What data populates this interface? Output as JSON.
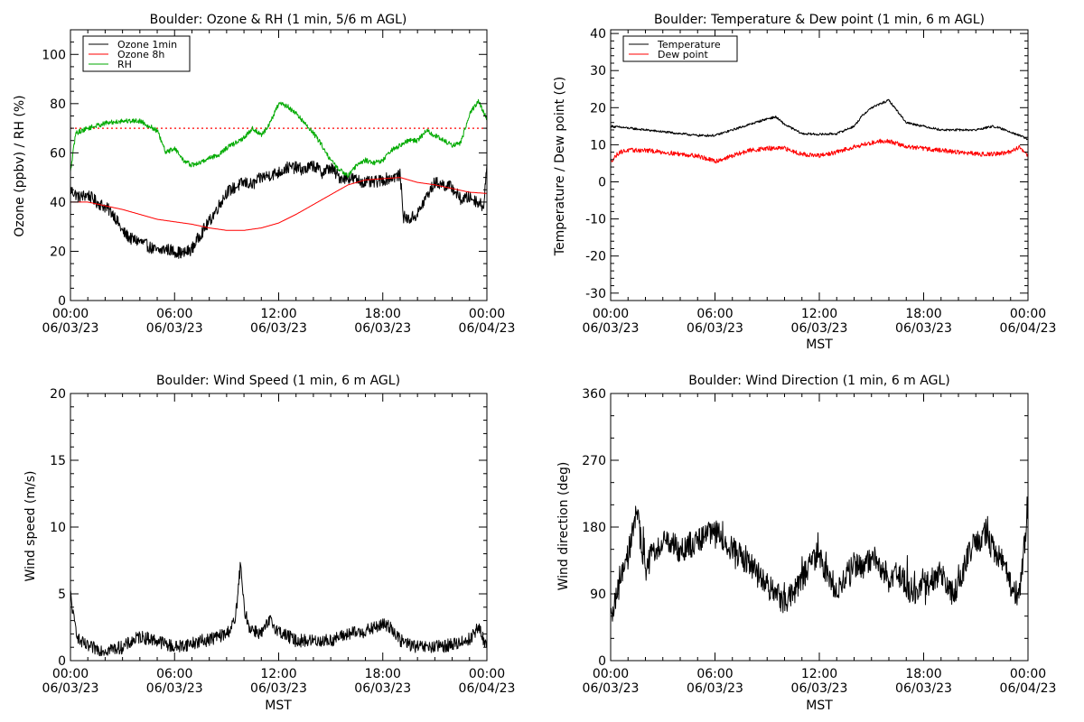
{
  "chart_data": [
    {
      "id": "ozone_rh",
      "type": "line",
      "title": "Boulder: Ozone & RH (1 min, 5/6 m AGL)",
      "ylabel": "Ozone (ppbv) / RH (%)",
      "xlabel": "",
      "xlim": [
        0,
        24
      ],
      "ylim": [
        0,
        110
      ],
      "xticks": [
        {
          "v": 0,
          "l1": "00:00",
          "l2": "06/03/23"
        },
        {
          "v": 6,
          "l1": "06:00",
          "l2": "06/03/23"
        },
        {
          "v": 12,
          "l1": "12:00",
          "l2": "06/03/23"
        },
        {
          "v": 18,
          "l1": "18:00",
          "l2": "06/03/23"
        },
        {
          "v": 24,
          "l1": "00:00",
          "l2": "06/04/23"
        }
      ],
      "yticks": [
        0,
        20,
        40,
        60,
        80,
        100
      ],
      "yminor": 5,
      "reference_line": {
        "y": 70,
        "color": "#ff0000",
        "style": "dotted"
      },
      "legend": {
        "position": "top-left"
      },
      "series": [
        {
          "name": "Ozone 1min",
          "color": "#000000",
          "noise": 2.5,
          "x": [
            0,
            0.5,
            1,
            1.5,
            2,
            2.5,
            3,
            3.5,
            4,
            4.5,
            5,
            5.5,
            6,
            6.5,
            7,
            7.5,
            8,
            8.5,
            9,
            9.5,
            10,
            10.5,
            11,
            11.5,
            12,
            12.5,
            13,
            13.5,
            14,
            14.5,
            15,
            15.5,
            16,
            16.5,
            17,
            17.5,
            18,
            18.5,
            19,
            19.2,
            19.5,
            20,
            20.5,
            21,
            21.5,
            22,
            22.5,
            23,
            23.5,
            23.8,
            24
          ],
          "y": [
            45,
            42,
            43,
            40,
            38,
            35,
            28,
            25,
            24,
            22,
            20,
            21,
            20,
            19,
            21,
            27,
            32,
            38,
            44,
            46,
            48,
            47,
            50,
            51,
            52,
            54,
            54,
            53,
            55,
            52,
            54,
            50,
            50,
            49,
            48,
            48,
            49,
            50,
            51,
            34,
            33,
            35,
            42,
            48,
            47,
            46,
            41,
            42,
            40,
            38,
            55
          ]
        },
        {
          "name": "Ozone 8h",
          "color": "#ff0000",
          "noise": 0,
          "x": [
            0,
            1,
            2,
            3,
            4,
            5,
            6,
            7,
            8,
            9,
            10,
            11,
            12,
            13,
            14,
            15,
            16,
            17,
            18,
            19,
            20,
            21,
            22,
            23,
            24
          ],
          "y": [
            40,
            40,
            38.5,
            37,
            35,
            33,
            32,
            31,
            29.5,
            28.5,
            28.5,
            29.5,
            31.5,
            35,
            39,
            43,
            47,
            49,
            49.5,
            50,
            48,
            47,
            45.5,
            44,
            43.5
          ]
        },
        {
          "name": "RH",
          "color": "#00aa00",
          "noise": 1,
          "x": [
            0,
            0.3,
            1,
            2,
            3,
            4,
            4.5,
            5,
            5.5,
            6,
            6.5,
            7,
            7.5,
            8,
            8.5,
            9,
            9.5,
            10,
            10.5,
            11,
            11.5,
            12,
            12.5,
            13,
            13.5,
            14,
            14.5,
            15,
            15.5,
            16,
            16.5,
            17,
            17.5,
            18,
            18.5,
            19,
            19.5,
            20,
            20.5,
            21,
            21.5,
            22,
            22.5,
            23,
            23.5,
            24
          ],
          "y": [
            52,
            68,
            70,
            72,
            73,
            73,
            71,
            69,
            60,
            62,
            57,
            55,
            56,
            58,
            59,
            62,
            64,
            66,
            70,
            67,
            72,
            80,
            79,
            76,
            72,
            68,
            63,
            57,
            53,
            51,
            55,
            57,
            56,
            57,
            61,
            63,
            65,
            65,
            69,
            67,
            65,
            63,
            64,
            76,
            81,
            74
          ]
        }
      ]
    },
    {
      "id": "temp_dew",
      "type": "line",
      "title": "Boulder: Temperature & Dew point (1 min, 6 m AGL)",
      "ylabel": "Temperature / Dew point (C)",
      "xlabel": "MST",
      "xlim": [
        0,
        24
      ],
      "ylim": [
        -32,
        41
      ],
      "xticks": [
        {
          "v": 0,
          "l1": "00:00",
          "l2": "06/03/23"
        },
        {
          "v": 6,
          "l1": "06:00",
          "l2": "06/03/23"
        },
        {
          "v": 12,
          "l1": "12:00",
          "l2": "06/03/23"
        },
        {
          "v": 18,
          "l1": "18:00",
          "l2": "06/03/23"
        },
        {
          "v": 24,
          "l1": "00:00",
          "l2": "06/04/23"
        }
      ],
      "yticks": [
        -30,
        -20,
        -10,
        0,
        10,
        20,
        30,
        40
      ],
      "yminor": 2,
      "legend": {
        "position": "top-left"
      },
      "series": [
        {
          "name": "Temperature",
          "color": "#000000",
          "noise": 0.3,
          "x": [
            0,
            1,
            2,
            3,
            4,
            5,
            6,
            7,
            8,
            9,
            9.5,
            10,
            11,
            12,
            13,
            14,
            14.5,
            15,
            15.5,
            16,
            16.5,
            17,
            18,
            19,
            20,
            21,
            22,
            23,
            24
          ],
          "y": [
            15,
            14.5,
            14,
            13.5,
            13,
            12.5,
            12.5,
            14,
            15.5,
            17,
            17.5,
            15.5,
            13,
            12.8,
            13,
            15,
            18,
            20,
            21,
            22,
            19,
            16,
            15,
            14,
            14,
            14,
            15,
            13.5,
            11.5
          ]
        },
        {
          "name": "Dew point",
          "color": "#ff0000",
          "noise": 0.6,
          "x": [
            0,
            0.5,
            1,
            2,
            3,
            4,
            5,
            6,
            7,
            8,
            9,
            10,
            11,
            12,
            13,
            14,
            15,
            15.5,
            16,
            17,
            18,
            19,
            20,
            21,
            22,
            23,
            23.5,
            24
          ],
          "y": [
            5.5,
            8,
            8.5,
            8.5,
            8,
            7.5,
            7,
            5.5,
            7,
            8.5,
            9,
            9,
            7.5,
            7,
            8,
            9.5,
            10.5,
            11,
            11,
            9.5,
            9,
            8.5,
            8,
            7.5,
            7.5,
            8,
            9.5,
            7
          ]
        }
      ]
    },
    {
      "id": "wind_speed",
      "type": "line",
      "title": "Boulder: Wind Speed (1 min, 6 m AGL)",
      "ylabel": "Wind speed (m/s)",
      "xlabel": "MST",
      "xlim": [
        0,
        24
      ],
      "ylim": [
        0,
        20
      ],
      "xticks": [
        {
          "v": 0,
          "l1": "00:00",
          "l2": "06/03/23"
        },
        {
          "v": 6,
          "l1": "06:00",
          "l2": "06/03/23"
        },
        {
          "v": 12,
          "l1": "12:00",
          "l2": "06/03/23"
        },
        {
          "v": 18,
          "l1": "18:00",
          "l2": "06/03/23"
        },
        {
          "v": 24,
          "l1": "00:00",
          "l2": "06/04/23"
        }
      ],
      "yticks": [
        0,
        5,
        10,
        15,
        20
      ],
      "yminor": 1,
      "series": [
        {
          "name": "",
          "color": "#000000",
          "noise": 0.5,
          "spike_floor": 0.1,
          "x": [
            0,
            0.2,
            0.5,
            1,
            2,
            3,
            4,
            5,
            6,
            7,
            8,
            9,
            9.5,
            9.8,
            10,
            10.3,
            11,
            11.5,
            12,
            13,
            14,
            15,
            16,
            17,
            18,
            18.5,
            19,
            20,
            21,
            22,
            23,
            23.5,
            24
          ],
          "y": [
            5,
            3,
            1.5,
            1,
            0.8,
            1,
            1.8,
            1.5,
            1,
            1.3,
            1.6,
            2,
            3,
            7.2,
            4,
            2.5,
            2,
            3,
            2.2,
            1.5,
            1.5,
            1.5,
            2,
            2.2,
            2.7,
            2.5,
            1.5,
            1,
            1,
            1.2,
            1.6,
            2.5,
            1
          ]
        }
      ]
    },
    {
      "id": "wind_dir",
      "type": "line",
      "title": "Boulder: Wind Direction (1 min, 6 m AGL)",
      "ylabel": "Wind direction (deg)",
      "xlabel": "MST",
      "xlim": [
        0,
        24
      ],
      "ylim": [
        0,
        360
      ],
      "xticks": [
        {
          "v": 0,
          "l1": "00:00",
          "l2": "06/03/23"
        },
        {
          "v": 6,
          "l1": "06:00",
          "l2": "06/03/23"
        },
        {
          "v": 12,
          "l1": "12:00",
          "l2": "06/03/23"
        },
        {
          "v": 18,
          "l1": "18:00",
          "l2": "06/03/23"
        },
        {
          "v": 24,
          "l1": "00:00",
          "l2": "06/04/23"
        }
      ],
      "yticks": [
        0,
        90,
        180,
        270,
        360
      ],
      "yminor": 30,
      "series": [
        {
          "name": "",
          "color": "#000000",
          "noise": 18,
          "x": [
            0,
            0.5,
            1,
            1.5,
            2,
            2.5,
            3,
            4,
            5,
            5.5,
            6,
            7,
            8,
            9,
            9.5,
            10,
            10.5,
            11,
            11.5,
            12,
            12.5,
            13,
            13.5,
            14,
            14.5,
            15,
            15.5,
            16,
            16.5,
            17,
            17.5,
            18,
            18.5,
            19,
            19.5,
            20,
            20.5,
            21,
            21.5,
            22,
            22.5,
            23,
            23.5,
            24
          ],
          "y": [
            50,
            100,
            140,
            200,
            120,
            150,
            160,
            150,
            160,
            170,
            175,
            150,
            130,
            100,
            90,
            80,
            90,
            110,
            130,
            140,
            110,
            90,
            110,
            130,
            120,
            140,
            130,
            110,
            120,
            100,
            90,
            100,
            110,
            120,
            90,
            100,
            140,
            160,
            170,
            150,
            140,
            100,
            90,
            200
          ]
        }
      ]
    }
  ]
}
